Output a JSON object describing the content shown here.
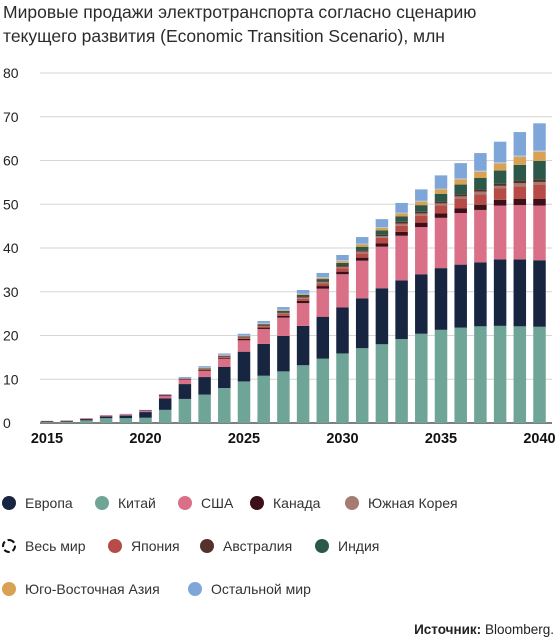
{
  "title": "Мировые продажи электротранспорта согласно сценарию текущего развития (Economic Transition Scenario), млн",
  "source": {
    "label": "Источник:",
    "value": "Bloomberg."
  },
  "chart_data": {
    "type": "bar",
    "stacked": true,
    "title": "Мировые продажи электротранспорта согласно сценарию текущего развития (Economic Transition Scenario), млн",
    "xlabel": "",
    "ylabel": "",
    "ylim": [
      0,
      80
    ],
    "yticks": [
      0,
      10,
      20,
      30,
      40,
      50,
      60,
      70,
      80
    ],
    "xtick_labels": [
      "2015",
      "2020",
      "2025",
      "2030",
      "2035",
      "2040"
    ],
    "grid": true,
    "legend_position": "bottom",
    "categories": [
      2015,
      2016,
      2017,
      2018,
      2019,
      2020,
      2021,
      2022,
      2023,
      2024,
      2025,
      2026,
      2027,
      2028,
      2029,
      2030,
      2031,
      2032,
      2033,
      2034,
      2035,
      2036,
      2037,
      2038,
      2039,
      2040
    ],
    "series": [
      {
        "name": "Китай",
        "color": "#6fa597",
        "values": [
          0.2,
          0.3,
          0.6,
          1.1,
          1.1,
          1.2,
          3.0,
          5.5,
          6.5,
          8.0,
          9.5,
          10.8,
          11.8,
          13.2,
          14.7,
          15.9,
          17.1,
          18.0,
          19.2,
          20.4,
          21.3,
          21.8,
          22.1,
          22.2,
          22.1,
          22.0
        ]
      },
      {
        "name": "Европа",
        "color": "#172541",
        "values": [
          0.2,
          0.2,
          0.3,
          0.4,
          0.6,
          1.3,
          2.6,
          3.4,
          4.0,
          4.8,
          6.8,
          7.3,
          8.1,
          9.0,
          9.6,
          10.5,
          11.4,
          12.8,
          13.4,
          13.6,
          14.1,
          14.4,
          14.6,
          15.2,
          15.3,
          15.2
        ]
      },
      {
        "name": "США",
        "color": "#d97087",
        "values": [
          0.1,
          0.1,
          0.2,
          0.3,
          0.3,
          0.3,
          0.6,
          1.0,
          1.4,
          1.9,
          2.6,
          3.4,
          4.2,
          5.2,
          6.4,
          7.6,
          8.6,
          9.5,
          10.2,
          10.8,
          11.5,
          11.8,
          12.0,
          12.3,
          12.4,
          12.5
        ]
      },
      {
        "name": "Канада",
        "color": "#3c1018",
        "values": [
          0.0,
          0.0,
          0.0,
          0.0,
          0.0,
          0.1,
          0.1,
          0.1,
          0.2,
          0.2,
          0.3,
          0.3,
          0.4,
          0.5,
          0.6,
          0.6,
          0.7,
          0.8,
          0.9,
          1.0,
          1.0,
          1.1,
          1.2,
          1.3,
          1.4,
          1.5
        ]
      },
      {
        "name": "Япония",
        "color": "#b64b48",
        "values": [
          0.0,
          0.0,
          0.0,
          0.0,
          0.0,
          0.0,
          0.1,
          0.1,
          0.1,
          0.2,
          0.2,
          0.3,
          0.4,
          0.5,
          0.6,
          0.8,
          1.0,
          1.2,
          1.4,
          1.6,
          1.8,
          2.1,
          2.4,
          2.6,
          2.9,
          3.2
        ]
      },
      {
        "name": "Южная Корея",
        "color": "#a67b70",
        "values": [
          0.0,
          0.0,
          0.0,
          0.0,
          0.0,
          0.0,
          0.1,
          0.1,
          0.1,
          0.1,
          0.2,
          0.2,
          0.2,
          0.3,
          0.3,
          0.3,
          0.4,
          0.4,
          0.5,
          0.5,
          0.5,
          0.6,
          0.6,
          0.6,
          0.7,
          0.7
        ]
      },
      {
        "name": "Австралия",
        "color": "#56302a",
        "values": [
          0.0,
          0.0,
          0.0,
          0.0,
          0.0,
          0.0,
          0.0,
          0.0,
          0.1,
          0.1,
          0.1,
          0.1,
          0.2,
          0.2,
          0.2,
          0.3,
          0.3,
          0.3,
          0.4,
          0.4,
          0.4,
          0.5,
          0.5,
          0.5,
          0.6,
          0.6
        ]
      },
      {
        "name": "Индия",
        "color": "#2b5848",
        "values": [
          0.0,
          0.0,
          0.0,
          0.0,
          0.0,
          0.0,
          0.0,
          0.0,
          0.1,
          0.1,
          0.1,
          0.2,
          0.3,
          0.4,
          0.5,
          0.6,
          0.8,
          1.0,
          1.2,
          1.5,
          1.8,
          2.2,
          2.6,
          3.0,
          3.6,
          4.2
        ]
      },
      {
        "name": "Юго-Восточная Азия",
        "color": "#d9a153",
        "values": [
          0.0,
          0.0,
          0.0,
          0.0,
          0.0,
          0.0,
          0.0,
          0.0,
          0.1,
          0.1,
          0.1,
          0.1,
          0.2,
          0.2,
          0.3,
          0.4,
          0.5,
          0.6,
          0.7,
          0.8,
          1.0,
          1.2,
          1.4,
          1.6,
          1.8,
          2.1
        ]
      },
      {
        "name": "Весь мир",
        "color": "#b9c4d0",
        "values": [
          0.0,
          0.0,
          0.0,
          0.0,
          0.0,
          0.0,
          0.0,
          0.0,
          0.1,
          0.1,
          0.1,
          0.1,
          0.1,
          0.1,
          0.1,
          0.2,
          0.2,
          0.2,
          0.2,
          0.2,
          0.2,
          0.2,
          0.3,
          0.3,
          0.3,
          0.3
        ]
      },
      {
        "name": "Остальной мир",
        "color": "#7fa6d8",
        "values": [
          0.0,
          0.0,
          0.0,
          0.0,
          0.1,
          0.1,
          0.1,
          0.3,
          0.3,
          0.3,
          0.4,
          0.5,
          0.6,
          0.8,
          1.0,
          1.2,
          1.5,
          1.8,
          2.2,
          2.6,
          3.0,
          3.5,
          4.0,
          4.7,
          5.4,
          6.2
        ]
      }
    ]
  },
  "legend": [
    {
      "label": "Европа",
      "color": "#172541",
      "style": "solid"
    },
    {
      "label": "Китай",
      "color": "#6fa597",
      "style": "solid"
    },
    {
      "label": "США",
      "color": "#d97087",
      "style": "solid"
    },
    {
      "label": "Канада",
      "color": "#3c1018",
      "style": "solid"
    },
    {
      "label": "Южная Корея",
      "color": "#a67b70",
      "style": "solid"
    },
    {
      "label": "Весь мир",
      "color": "#111111",
      "style": "dashed"
    },
    {
      "label": "Япония",
      "color": "#b64b48",
      "style": "solid"
    },
    {
      "label": "Австралия",
      "color": "#56302a",
      "style": "solid"
    },
    {
      "label": "Индия",
      "color": "#2b5848",
      "style": "solid"
    },
    {
      "label": "Юго-Восточная Азия",
      "color": "#d9a153",
      "style": "solid"
    },
    {
      "label": "Остальной мир",
      "color": "#7fa6d8",
      "style": "solid"
    }
  ]
}
